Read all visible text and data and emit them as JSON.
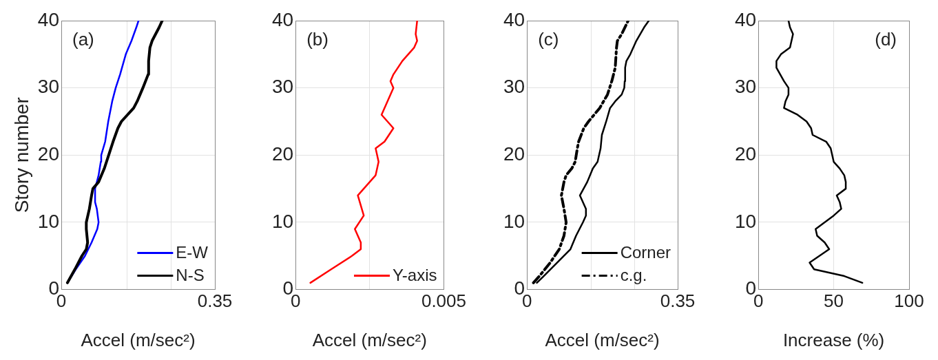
{
  "chart_data": [
    {
      "type": "line",
      "xlabel": "Accel (m/sec²)",
      "ylabel": "Story number",
      "annotations": [
        "(a)"
      ],
      "xlim": [
        0,
        0.35
      ],
      "xticks": [
        0,
        {
          "value": 0.15,
          "label": null
        },
        {
          "value": 0.25,
          "label": null
        },
        0.35
      ],
      "ylim": [
        0,
        40
      ],
      "yticks": [
        0,
        10,
        20,
        30,
        40
      ],
      "grid": true,
      "legend": "bottom right",
      "marker": "none",
      "series": [
        {
          "name": "E-W",
          "color": "#0000ff",
          "x": [
            0.014,
            0.033,
            0.054,
            0.069,
            0.082,
            0.085,
            0.081,
            0.077,
            0.077,
            0.085,
            0.09,
            0.091,
            0.1,
            0.107,
            0.116,
            0.124,
            0.134,
            0.147,
            0.16,
            0.171,
            0.176
          ],
          "values": [
            1,
            3,
            5,
            7,
            9,
            10,
            12,
            13,
            15,
            17,
            19,
            20,
            22,
            25,
            28,
            30,
            32,
            35,
            37,
            39,
            40
          ]
        },
        {
          "name": "N-S",
          "color": "#000000",
          "x": [
            0.014,
            0.031,
            0.047,
            0.057,
            0.06,
            0.057,
            0.057,
            0.064,
            0.069,
            0.072,
            0.085,
            0.098,
            0.108,
            0.118,
            0.129,
            0.137,
            0.165,
            0.173,
            0.186,
            0.198,
            0.199,
            0.202,
            0.207,
            0.215,
            0.223,
            0.23
          ],
          "values": [
            1,
            3,
            5,
            6,
            7,
            9,
            10,
            12,
            14,
            15,
            16,
            18,
            20,
            22,
            24,
            25,
            27,
            28,
            30,
            32,
            34,
            36,
            37,
            38,
            39,
            40
          ]
        }
      ]
    },
    {
      "type": "line",
      "xlabel": "Accel (m/sec²)",
      "annotations": [
        "(b)"
      ],
      "xlim": [
        0,
        0.005
      ],
      "xticks": [
        0,
        {
          "value": 0.0025,
          "label": null
        },
        0.005
      ],
      "ylim": [
        0,
        40
      ],
      "yticks": [
        0,
        10,
        20,
        30,
        40
      ],
      "grid": true,
      "legend": "bottom right",
      "marker": "none",
      "series": [
        {
          "name": "Y-axis",
          "color": "#ff0000",
          "x": [
            0.0005,
            0.0012,
            0.0019,
            0.0022,
            0.0022,
            0.002,
            0.0023,
            0.0021,
            0.0023,
            0.0027,
            0.0028,
            0.0027,
            0.003,
            0.0033,
            0.0029,
            0.0031,
            0.0033,
            0.0032,
            0.0033,
            0.0036,
            0.004,
            0.0041,
            0.00405,
            0.0041
          ],
          "values": [
            1,
            3,
            5,
            6,
            7,
            9,
            11,
            14,
            15,
            17,
            19,
            21,
            22,
            24,
            26,
            28,
            30,
            31,
            32,
            34,
            36,
            37,
            38,
            40
          ]
        }
      ]
    },
    {
      "type": "line",
      "xlabel": "Accel (m/sec²)",
      "annotations": [
        "(c)"
      ],
      "xlim": [
        0,
        0.35
      ],
      "xticks": [
        0,
        {
          "value": 0.15,
          "label": null
        },
        {
          "value": 0.25,
          "label": null
        },
        0.35
      ],
      "ylim": [
        0,
        40
      ],
      "yticks": [
        0,
        10,
        20,
        30,
        40
      ],
      "grid": true,
      "legend": "bottom right",
      "marker": "none",
      "series": [
        {
          "name": "Corner",
          "color": "#000000",
          "line_style": "solid",
          "x": [
            0.023,
            0.039,
            0.07,
            0.101,
            0.114,
            0.13,
            0.137,
            0.137,
            0.123,
            0.14,
            0.153,
            0.164,
            0.171,
            0.174,
            0.184,
            0.193,
            0.205,
            0.22,
            0.226,
            0.227,
            0.228,
            0.231,
            0.24,
            0.254,
            0.272,
            0.283
          ],
          "values": [
            1,
            2,
            4,
            6,
            8,
            10,
            11,
            12,
            14,
            16,
            18,
            19,
            21,
            23,
            25,
            27,
            28,
            29,
            30,
            31,
            33,
            34,
            35,
            37,
            39,
            40
          ]
        },
        {
          "name": "c.g.",
          "color": "#000000",
          "line_style": "dashed",
          "x": [
            0.015,
            0.029,
            0.054,
            0.075,
            0.086,
            0.091,
            0.086,
            0.08,
            0.086,
            0.091,
            0.104,
            0.112,
            0.117,
            0.12,
            0.132,
            0.143,
            0.169,
            0.187,
            0.197,
            0.205,
            0.208,
            0.21,
            0.22,
            0.235
          ],
          "values": [
            1,
            2,
            4,
            6,
            8,
            10,
            12,
            14,
            16,
            17,
            18,
            19,
            21,
            22,
            24,
            25,
            27,
            29,
            31,
            33,
            36,
            37,
            38,
            40
          ]
        }
      ]
    },
    {
      "type": "line",
      "xlabel": "Increase (%)",
      "annotations": [
        "(d)"
      ],
      "xlim": [
        0,
        100
      ],
      "xticks": [
        0,
        50,
        100
      ],
      "ylim": [
        0,
        40
      ],
      "yticks": [
        0,
        10,
        20,
        30,
        40
      ],
      "grid": true,
      "marker": "none",
      "series": [
        {
          "color": "#000000",
          "x": [
            69,
            57,
            37,
            34,
            47,
            44,
            39,
            38,
            44,
            50,
            55,
            54,
            52,
            58,
            58,
            57,
            54,
            50,
            49,
            48,
            45,
            36,
            35,
            32,
            26,
            17,
            18,
            20,
            20,
            17,
            12,
            12,
            15,
            21,
            22,
            23,
            21,
            20
          ],
          "values": [
            1,
            2,
            3,
            4,
            6,
            7,
            8,
            9,
            10,
            11,
            12,
            13,
            14,
            15,
            16,
            17,
            18,
            19,
            20,
            21,
            22,
            23,
            24,
            25,
            26,
            27,
            28,
            29,
            30,
            31,
            33,
            34,
            35,
            36,
            37,
            38,
            39,
            40
          ]
        }
      ]
    }
  ]
}
